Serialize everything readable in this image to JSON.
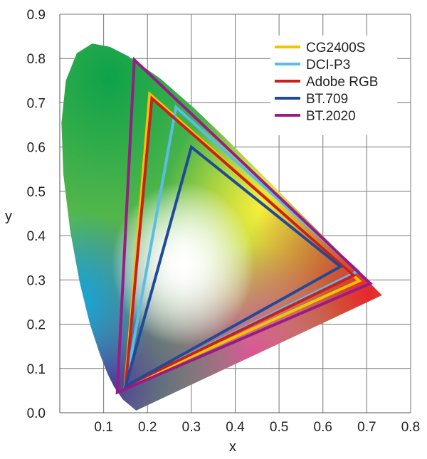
{
  "chart_data": {
    "type": "line",
    "xlabel": "x",
    "ylabel": "y",
    "xlim": [
      0,
      0.8
    ],
    "ylim": [
      0,
      0.9
    ],
    "xticks": [
      "0.1",
      "0.2",
      "0.3",
      "0.4",
      "0.5",
      "0.6",
      "0.7",
      "0.8"
    ],
    "yticks": [
      "0.0",
      "0.1",
      "0.2",
      "0.3",
      "0.4",
      "0.5",
      "0.6",
      "0.7",
      "0.8",
      "0.9"
    ],
    "grid": true,
    "legend_position": "top-right",
    "spectral_locus": [
      [
        0.1741,
        0.005
      ],
      [
        0.144,
        0.0297
      ],
      [
        0.1241,
        0.0578
      ],
      [
        0.1096,
        0.0868
      ],
      [
        0.0913,
        0.1327
      ],
      [
        0.0687,
        0.2007
      ],
      [
        0.0454,
        0.295
      ],
      [
        0.0235,
        0.4127
      ],
      [
        0.0082,
        0.5384
      ],
      [
        0.0039,
        0.6548
      ],
      [
        0.0139,
        0.7502
      ],
      [
        0.0389,
        0.812
      ],
      [
        0.0743,
        0.8338
      ],
      [
        0.1142,
        0.8262
      ],
      [
        0.1547,
        0.8059
      ],
      [
        0.2296,
        0.7543
      ],
      [
        0.3016,
        0.6923
      ],
      [
        0.3731,
        0.6245
      ],
      [
        0.4441,
        0.5547
      ],
      [
        0.5125,
        0.4866
      ],
      [
        0.5752,
        0.4242
      ],
      [
        0.627,
        0.3725
      ],
      [
        0.6915,
        0.3083
      ],
      [
        0.7347,
        0.2653
      ]
    ],
    "series": [
      {
        "name": "CG2400S",
        "color": "#f5c400",
        "points": [
          [
            0.683,
            0.298
          ],
          [
            0.205,
            0.72
          ],
          [
            0.149,
            0.059
          ]
        ]
      },
      {
        "name": "DCI-P3",
        "color": "#5bbde6",
        "points": [
          [
            0.68,
            0.32
          ],
          [
            0.265,
            0.69
          ],
          [
            0.15,
            0.06
          ]
        ]
      },
      {
        "name": "Adobe RGB",
        "color": "#c8201e",
        "points": [
          [
            0.67,
            0.31
          ],
          [
            0.21,
            0.71
          ],
          [
            0.15,
            0.06
          ]
        ]
      },
      {
        "name": "BT.709",
        "color": "#1f4a9a",
        "points": [
          [
            0.64,
            0.33
          ],
          [
            0.3,
            0.6
          ],
          [
            0.15,
            0.06
          ]
        ]
      },
      {
        "name": "BT.2020",
        "color": "#9a1a86",
        "points": [
          [
            0.708,
            0.292
          ],
          [
            0.17,
            0.797
          ],
          [
            0.131,
            0.046
          ]
        ]
      }
    ]
  }
}
